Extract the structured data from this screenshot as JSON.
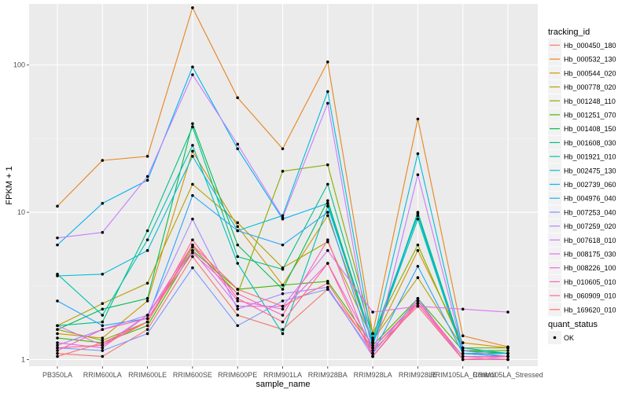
{
  "chart_data": {
    "type": "line",
    "xlabel": "sample_name",
    "ylabel": "FPKM + 1",
    "y_scale": "log10",
    "ylim": [
      0.9,
      260
    ],
    "y_ticks": [
      1,
      10,
      100
    ],
    "y_tick_labels": [
      "1",
      "10",
      "100"
    ],
    "grid": true,
    "legend_position": "right",
    "categories": [
      "PB350LA",
      "RRIM600LA",
      "RRIM600LE",
      "RRIM600SE",
      "RRIM600PE",
      "RRIM901LA",
      "RRIM928BA",
      "RRIM928LA",
      "RRIM928LE",
      "RRIM105LA_Control",
      "RRIM105LA_Stressed"
    ],
    "category_labels": [
      "PB350LA",
      "RRIM600LA",
      "RRIM600LE",
      "RRIM600SE",
      "RRIM600PE",
      "RRIM901LA",
      "RRIM928BA",
      "RRIM928LA",
      "RRIM928LE",
      "RRIM105LA_Control",
      "RRIM105LA_Stressed"
    ],
    "legend_title": "tracking_id",
    "second_legend": {
      "title": "quant_status",
      "label": "OK",
      "color": "#000000"
    },
    "series": [
      {
        "name": "Hb_000450_180",
        "color": "#F8766D",
        "values": [
          1.1,
          1.05,
          1.6,
          5.0,
          2.0,
          1.6,
          3.0,
          1.2,
          2.5,
          1.05,
          1.05
        ]
      },
      {
        "name": "Hb_000532_130",
        "color": "#E7851E",
        "values": [
          11.0,
          22.5,
          24.0,
          245,
          60,
          27,
          105,
          1.5,
          43,
          1.45,
          1.22
        ]
      },
      {
        "name": "Hb_000544_020",
        "color": "#D09400",
        "values": [
          1.5,
          1.4,
          2.5,
          26.0,
          8.0,
          3.2,
          9.5,
          1.3,
          5.5,
          1.3,
          1.2
        ]
      },
      {
        "name": "Hb_000778_020",
        "color": "#B2A100",
        "values": [
          1.7,
          2.4,
          3.3,
          15.5,
          8.5,
          4.2,
          6.3,
          1.35,
          3.6,
          1.2,
          1.1
        ]
      },
      {
        "name": "Hb_001248_110",
        "color": "#89AC00",
        "values": [
          1.6,
          1.35,
          1.8,
          5.8,
          2.8,
          19.0,
          21.0,
          1.5,
          6.0,
          1.2,
          1.2
        ]
      },
      {
        "name": "Hb_001251_070",
        "color": "#45B500",
        "values": [
          1.4,
          1.3,
          1.7,
          5.5,
          3.0,
          3.2,
          3.4,
          1.25,
          2.6,
          1.15,
          1.15
        ]
      },
      {
        "name": "Hb_001408_150",
        "color": "#00BC51",
        "values": [
          1.6,
          2.2,
          2.6,
          40,
          6.0,
          3.0,
          12.0,
          1.3,
          10.0,
          1.15,
          1.1
        ]
      },
      {
        "name": "Hb_001608_030",
        "color": "#00C087",
        "values": [
          1.7,
          1.8,
          7.5,
          38,
          5.0,
          4.1,
          15.5,
          1.4,
          9.5,
          1.1,
          1.1
        ]
      },
      {
        "name": "Hb_001921_010",
        "color": "#00C0B2",
        "values": [
          3.8,
          2.0,
          6.5,
          28.5,
          4.5,
          1.5,
          11.0,
          1.3,
          9.0,
          1.1,
          1.05
        ]
      },
      {
        "name": "Hb_002475_130",
        "color": "#00BCD6",
        "values": [
          3.7,
          3.8,
          5.5,
          24.0,
          7.5,
          9.5,
          66,
          1.3,
          25,
          1.2,
          1.1
        ]
      },
      {
        "name": "Hb_002739_060",
        "color": "#00B3F2",
        "values": [
          6.0,
          11.5,
          16.5,
          97,
          27,
          9.0,
          11.5,
          1.25,
          9.8,
          1.1,
          1.05
        ]
      },
      {
        "name": "Hb_004976_040",
        "color": "#29A3FF",
        "values": [
          2.5,
          1.7,
          1.9,
          13.0,
          7.5,
          6.0,
          10.0,
          1.1,
          4.3,
          1.1,
          1.05
        ]
      },
      {
        "name": "Hb_007253_040",
        "color": "#7C96FF",
        "values": [
          1.2,
          1.15,
          1.5,
          4.2,
          1.7,
          2.5,
          3.0,
          1.1,
          2.6,
          1.0,
          1.0
        ]
      },
      {
        "name": "Hb_007259_020",
        "color": "#A68AFF",
        "values": [
          1.25,
          1.6,
          2.0,
          9.0,
          2.2,
          2.8,
          3.1,
          1.05,
          2.5,
          1.05,
          1.0
        ]
      },
      {
        "name": "Hb_007618_010",
        "color": "#C77CFF",
        "values": [
          6.7,
          7.3,
          17.5,
          86,
          29,
          9.2,
          55,
          1.05,
          18.0,
          1.15,
          1.05
        ]
      },
      {
        "name": "Hb_008175_030",
        "color": "#DF71F0",
        "values": [
          1.7,
          1.25,
          2.0,
          5.5,
          2.3,
          2.3,
          5.5,
          2.1,
          2.3,
          2.2,
          2.1
        ]
      },
      {
        "name": "Hb_008226_100",
        "color": "#EF67D8",
        "values": [
          1.3,
          1.2,
          2.0,
          6.0,
          2.5,
          2.2,
          4.5,
          1.2,
          2.4,
          1.0,
          1.05
        ]
      },
      {
        "name": "Hb_010605_010",
        "color": "#FA62B8",
        "values": [
          1.15,
          1.6,
          1.9,
          5.3,
          2.8,
          2.0,
          6.5,
          1.05,
          2.4,
          1.05,
          1.05
        ]
      },
      {
        "name": "Hb_060909_010",
        "color": "#FF6393",
        "values": [
          1.2,
          1.25,
          1.8,
          6.5,
          2.6,
          1.8,
          4.5,
          1.05,
          2.5,
          1.05,
          1.05
        ]
      },
      {
        "name": "Hb_169620_010",
        "color": "#FF6C6E",
        "values": [
          1.05,
          1.3,
          1.8,
          6.0,
          3.0,
          2.3,
          3.3,
          1.15,
          2.3,
          1.0,
          1.0
        ]
      }
    ]
  }
}
